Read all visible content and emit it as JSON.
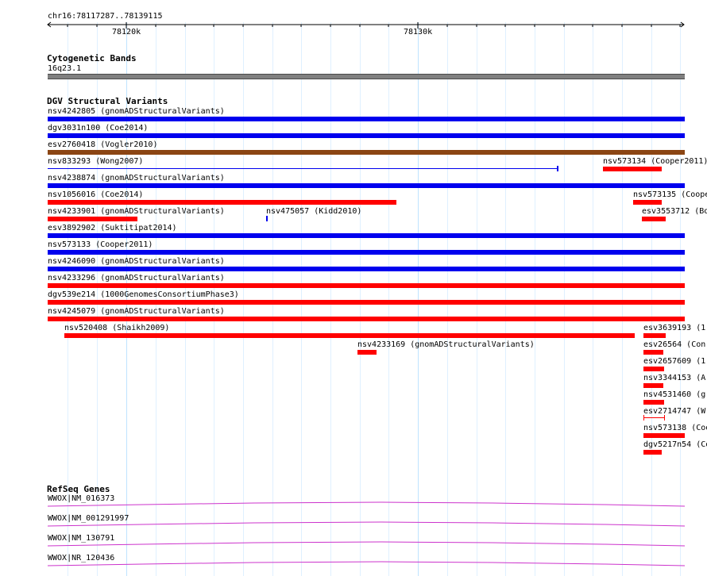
{
  "ruler": {
    "location": "chr16:78117287..78139115",
    "major_labels": [
      "78120k",
      "78130k"
    ]
  },
  "colors": {
    "gnomad": "#0000ee",
    "coe": "#0000ee",
    "vogler": "#8b4513",
    "loss": "#ff0000",
    "gene": "#cc33cc",
    "band": "#808080"
  },
  "tracks": {
    "cytoband": {
      "title": "Cytogenetic Bands",
      "label": "16q23.1"
    },
    "dgv": {
      "title": "DGV Structural Variants",
      "labels": [
        "nsv4242805 (gnomADStructuralVariants)",
        "dgv3031n100 (Coe2014)",
        "esv2760418 (Vogler2010)",
        "nsv833293 (Wong2007)",
        "nsv573134 (Cooper2011)",
        "nsv4238874 (gnomADStructuralVariants)",
        "nsv1056016 (Coe2014)",
        "nsv573135 (Coope",
        "nsv4233901 (gnomADStructuralVariants)",
        "nsv475057 (Kidd2010)",
        "esv3553712 (Bo",
        "esv3892902 (Suktitipat2014)",
        "nsv573133 (Cooper2011)",
        "nsv4246090 (gnomADStructuralVariants)",
        "nsv4233296 (gnomADStructuralVariants)",
        "dgv539e214 (1000GenomesConsortiumPhase3)",
        "nsv4245079 (gnomADStructuralVariants)",
        "nsv520408 (Shaikh2009)",
        "esv3639193 (1(",
        "nsv4233169 (gnomADStructuralVariants)",
        "esv26564 (Conr",
        "esv2657609 (1(",
        "nsv3344153 (A(",
        "nsv4531460 (g(",
        "esv2714747 (W(",
        "nsv573138 (Coo",
        "dgv5217n54 (Co"
      ]
    },
    "refseq": {
      "title": "RefSeq Genes",
      "labels": [
        "WWOX|NM_016373",
        "WWOX|NM_001291997",
        "WWOX|NM_130791",
        "WWOX|NR_120436"
      ]
    }
  }
}
